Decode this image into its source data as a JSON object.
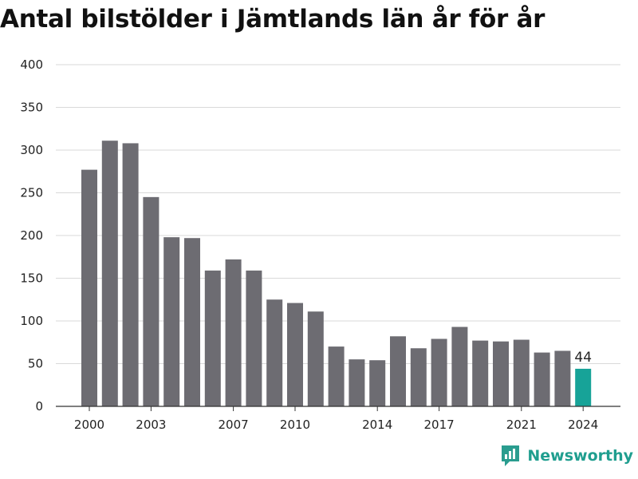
{
  "title": "Antal bilstölder i Jämtlands län år för år",
  "brand": "Newsworthy",
  "colors": {
    "bar": "#6d6c72",
    "highlight": "#17a398",
    "grid": "#d9d9d9",
    "brand": "#1f9e8f"
  },
  "chart_data": {
    "type": "bar",
    "title": "Antal bilstölder i Jämtlands län år för år",
    "xlabel": "",
    "ylabel": "",
    "ylim": [
      0,
      400
    ],
    "yticks": [
      0,
      50,
      100,
      150,
      200,
      250,
      300,
      350,
      400
    ],
    "xtick_labels": [
      "2000",
      "2003",
      "2007",
      "2010",
      "2014",
      "2017",
      "2021",
      "2024"
    ],
    "categories": [
      "2000",
      "2001",
      "2002",
      "2003",
      "2004",
      "2005",
      "2006",
      "2007",
      "2008",
      "2009",
      "2010",
      "2011",
      "2012",
      "2013",
      "2014",
      "2015",
      "2016",
      "2017",
      "2018",
      "2019",
      "2020",
      "2021",
      "2022",
      "2023",
      "2024"
    ],
    "values": [
      277,
      311,
      308,
      245,
      198,
      197,
      159,
      172,
      159,
      125,
      121,
      111,
      70,
      55,
      54,
      82,
      68,
      79,
      93,
      77,
      76,
      78,
      63,
      65,
      44
    ],
    "highlight": {
      "category": "2024",
      "label": "44"
    },
    "grid": true,
    "legend": "none"
  }
}
